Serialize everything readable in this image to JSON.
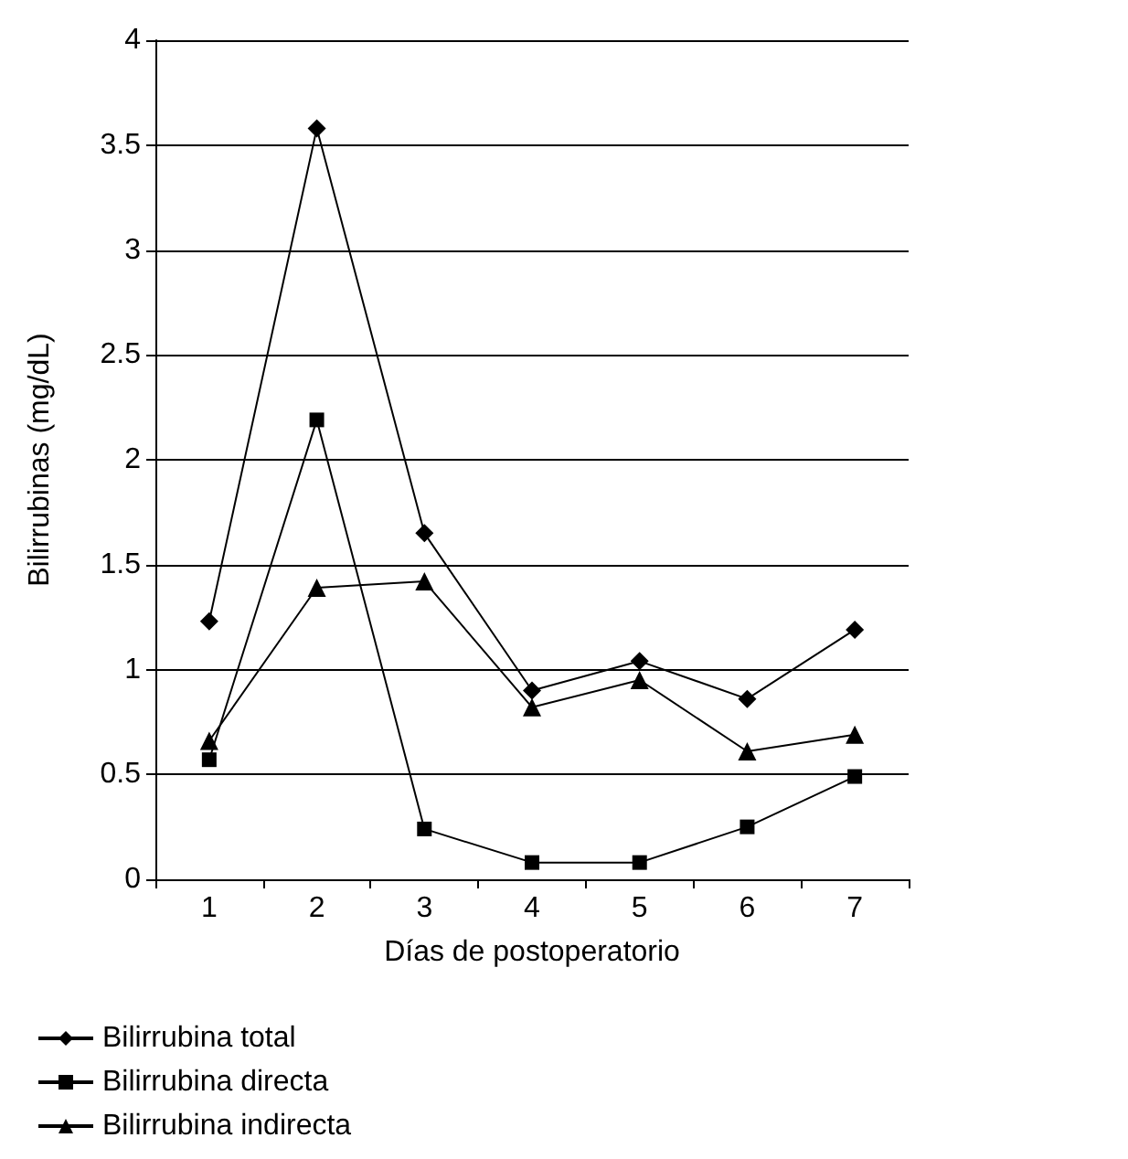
{
  "chart_data": {
    "type": "line",
    "xlabel": "Días de postoperatorio",
    "ylabel": "Bilirrubinas (mg/dL)",
    "categories": [
      "1",
      "2",
      "3",
      "4",
      "5",
      "6",
      "7"
    ],
    "series": [
      {
        "name": "Bilirrubina total",
        "color": "#000000",
        "marker": "diamond",
        "values": [
          1.23,
          3.58,
          1.65,
          0.9,
          1.04,
          0.86,
          1.19
        ]
      },
      {
        "name": "Bilirrubina directa",
        "color": "#000000",
        "marker": "square",
        "values": [
          0.57,
          2.19,
          0.24,
          0.08,
          0.08,
          0.25,
          0.49
        ]
      },
      {
        "name": "Bilirrubina indirecta",
        "color": "#000000",
        "marker": "triangle",
        "values": [
          0.66,
          1.39,
          1.42,
          0.82,
          0.95,
          0.61,
          0.69
        ]
      }
    ],
    "ylim": [
      0,
      4
    ],
    "yticks": [
      0,
      0.5,
      1,
      1.5,
      2,
      2.5,
      3,
      3.5,
      4
    ],
    "grid": "y",
    "legend": "bottom left",
    "line_style": "solid"
  }
}
